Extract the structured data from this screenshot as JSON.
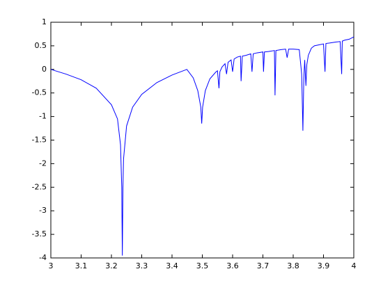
{
  "chart_data": {
    "type": "line",
    "x": [
      3.0,
      3.05,
      3.1,
      3.15,
      3.2,
      3.22,
      3.23,
      3.234,
      3.236,
      3.238,
      3.24,
      3.25,
      3.27,
      3.3,
      3.35,
      3.4,
      3.449,
      3.47,
      3.485,
      3.495,
      3.498,
      3.501,
      3.51,
      3.525,
      3.544,
      3.55,
      3.555,
      3.558,
      3.565,
      3.575,
      3.58,
      3.585,
      3.595,
      3.6,
      3.605,
      3.615,
      3.626,
      3.628,
      3.632,
      3.645,
      3.66,
      3.664,
      3.668,
      3.68,
      3.7,
      3.702,
      3.705,
      3.72,
      3.738,
      3.74,
      3.743,
      3.76,
      3.775,
      3.78,
      3.785,
      3.8,
      3.82,
      3.828,
      3.832,
      3.835,
      3.838,
      3.842,
      3.845,
      3.85,
      3.86,
      3.87,
      3.885,
      3.9,
      3.905,
      3.908,
      3.92,
      3.94,
      3.955,
      3.96,
      3.962,
      3.97,
      3.985,
      4.0
    ],
    "values": [
      0,
      -0.1,
      -0.22,
      -0.4,
      -0.75,
      -1.05,
      -1.6,
      -2.5,
      -3.95,
      -2.5,
      -1.9,
      -1.2,
      -0.8,
      -0.53,
      -0.28,
      -0.12,
      0,
      -0.18,
      -0.45,
      -0.8,
      -1.15,
      -0.8,
      -0.45,
      -0.2,
      -0.06,
      -0.03,
      -0.4,
      -0.05,
      0.05,
      0.12,
      -0.1,
      0.15,
      0.2,
      -0.05,
      0.22,
      0.26,
      0.28,
      -0.25,
      0.28,
      0.3,
      0.33,
      -0.05,
      0.33,
      0.35,
      0.37,
      -0.05,
      0.37,
      0.38,
      0.4,
      -0.55,
      0.4,
      0.42,
      0.43,
      0.25,
      0.43,
      0.43,
      0.42,
      -0.1,
      -1.3,
      -0.2,
      0.2,
      -0.35,
      0.1,
      0.3,
      0.45,
      0.5,
      0.52,
      0.54,
      -0.05,
      0.55,
      0.56,
      0.58,
      0.59,
      -0.1,
      0.6,
      0.62,
      0.64,
      0.69
    ],
    "color": "#0000ff",
    "xlim": [
      3,
      4
    ],
    "xticks": [
      3,
      3.1,
      3.2,
      3.3,
      3.4,
      3.5,
      3.6,
      3.7,
      3.8,
      3.9,
      4
    ],
    "ylim": [
      -4,
      1
    ],
    "yticks": [
      -4,
      -3.5,
      -3,
      -2.5,
      -2,
      -1.5,
      -1,
      -0.5,
      0,
      0.5,
      1
    ],
    "grid": false
  }
}
